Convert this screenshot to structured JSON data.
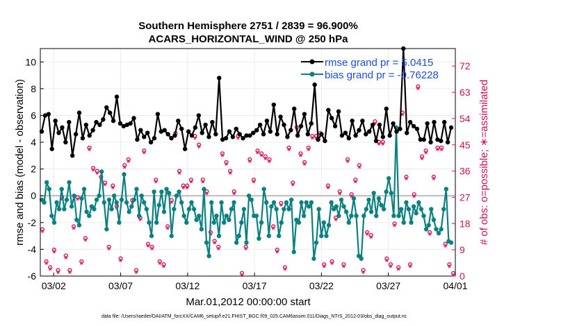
{
  "chart_data": {
    "type": "line",
    "title_line1": "Southern Hemisphere 2751 / 2839 = 96.900%",
    "title_line2": "ACARS_HORIZONTAL_WIND @ 250 hPa",
    "xlabel": "Mar.01,2012 00:00:00 start",
    "ylabel": "rmse and bias (model - observation)",
    "y2label": "# of obs: o=possible; ∗=assimilated",
    "footnote": "data file: /Users/raeder/DAI/ATM_forcXX/CAM6_setup/f.e21.FHIST_BGC.f09_025.CAM6assim.011/Diags_NTrS_2012-03/obs_diag_output.nc",
    "xlim": [
      0,
      31
    ],
    "ylim": [
      -6,
      11
    ],
    "y2lim": [
      0,
      78
    ],
    "xticks": [
      1,
      6,
      11,
      16,
      21,
      26,
      31
    ],
    "xtick_labels": [
      "03/02",
      "03/07",
      "03/12",
      "03/17",
      "03/22",
      "03/27",
      "04/01"
    ],
    "yticks": [
      -6,
      -4,
      -2,
      0,
      2,
      4,
      6,
      8,
      10
    ],
    "y2ticks": [
      0,
      9,
      18,
      27,
      36,
      45,
      54,
      63,
      72
    ],
    "legend_location": "top-right",
    "colors": {
      "rmse": "#000000",
      "bias": "#0a8080",
      "obs": "#d4145a",
      "zero": "#bbbbbb"
    },
    "series": [
      {
        "name": "rmse grand pr = 5.0415",
        "values": [
          4.8,
          6.0,
          6.1,
          3.5,
          5.6,
          4.7,
          5.1,
          4.0,
          5.5,
          3.0,
          4.6,
          6.2,
          4.3,
          5.3,
          4.5,
          4.9,
          5.5,
          5.3,
          5.7,
          6.6,
          6.2,
          5.6,
          7.4,
          5.4,
          5.2,
          5.3,
          5.4,
          5.8,
          4.2,
          4.9,
          4.4,
          4.7,
          4.0,
          4.3,
          6.1,
          4.8,
          4.9,
          4.6,
          4.3,
          4.5,
          5.6,
          5.0,
          3.5,
          4.8,
          4.5,
          5.1,
          6.0,
          4.7,
          5.3,
          4.4,
          5.5,
          4.6,
          8.8,
          4.2,
          4.3,
          4.8,
          4.4,
          5.0,
          4.6,
          4.3,
          4.5,
          4.5,
          4.7,
          4.9,
          5.3,
          4.6,
          5.6,
          4.8,
          6.8,
          4.6,
          5.9,
          5.3,
          4.4,
          4.9,
          6.5,
          4.5,
          5.2,
          6.1,
          4.6,
          5.4,
          8.3,
          4.2,
          4.6,
          4.1,
          6.4,
          5.8,
          5.2,
          6.3,
          4.5,
          4.7,
          4.3,
          5.6,
          4.5,
          4.9,
          5.6,
          4.6,
          4.8,
          5.3,
          4.1,
          5.3,
          4.4,
          6.5,
          4.5,
          5.4,
          4.8,
          5.0,
          11.0,
          4.7,
          5.5,
          5.2,
          5.0,
          4.2,
          4.2,
          5.4,
          4.0,
          5.5,
          4.2,
          4.1,
          5.5,
          4.0,
          5.1
        ]
      },
      {
        "name": "bias grand pr = -0.76228",
        "values": [
          -0.3,
          -0.5,
          1.0,
          0.5,
          -1.5,
          -2.0,
          -0.5,
          -1.0,
          0.5,
          -1.0,
          -0.3,
          1.0,
          -0.8,
          0.0,
          -1.8,
          -2.2,
          -0.2,
          0.5,
          -1.2,
          -1.5,
          -0.8,
          -1.0,
          -0.3,
          0.0,
          1.8,
          -0.5,
          -2.5,
          -0.3,
          -1.0,
          0.0,
          -0.5,
          -2.0,
          -0.3,
          1.6,
          -0.5,
          -1.2,
          -0.8,
          -0.3,
          0.5,
          -1.5,
          0.0,
          -0.5,
          -1.0,
          -2.0,
          -3.0,
          0.3,
          -2.0,
          -0.7,
          0.3,
          -1.2,
          0.5,
          0.2,
          -3.0,
          -1.0,
          0.0,
          0.3,
          -0.5,
          -1.5,
          -2.0,
          -1.0,
          -0.5,
          -1.0,
          -1.8,
          -1.5,
          -2.5,
          0.5,
          -3.5,
          -4.5,
          -0.5,
          -2.0,
          -1.5,
          -3.0,
          -0.5,
          -2.0,
          -1.5,
          -1.8,
          -1.0,
          -0.5,
          -3.5,
          -3.0,
          -2.0,
          -1.0,
          -3.5,
          0.0,
          -0.3,
          -1.5,
          -1.5,
          -3.2,
          -2.0,
          0.5,
          -0.5,
          -3.0,
          -0.8,
          -0.5,
          -1.0,
          -3.0,
          -2.0,
          -1.0,
          -0.5,
          -1.0,
          -0.3,
          -4.2,
          -1.8,
          -2.0,
          -0.5,
          -1.5,
          -0.5,
          -0.8,
          -0.5,
          -4.7,
          -3.5,
          -1.0,
          -3.0,
          -2.0,
          -3.0,
          -2.2,
          -0.5,
          -1.0,
          -0.8,
          -1.5,
          -0.3,
          -0.8,
          -1.2,
          -2.0,
          -1.5,
          -0.2,
          -1.5,
          -4.5,
          -4.7,
          -1.5,
          -1.0,
          -0.3,
          -1.2,
          0.2,
          -1.5,
          -0.2,
          -0.7,
          -1.0,
          0.3,
          1.3,
          0.2,
          -1.5,
          5.1,
          -1.5,
          -1.0,
          -2.0,
          -0.5,
          -1.0,
          -2.0,
          -0.8,
          -1.3,
          -0.5,
          -1.0,
          -1.5,
          -2.5,
          -2.2,
          -1.0,
          -1.8,
          -2.5,
          -2.8,
          -2.5,
          -1.0,
          0.5,
          -3.4,
          -3.5
        ]
      },
      {
        "name": "obs possible",
        "values": [
          16,
          5,
          3,
          9,
          2,
          27,
          7,
          2,
          17,
          27,
          5,
          13,
          44,
          37,
          36,
          34,
          32,
          10,
          31,
          24,
          6,
          38,
          40,
          26,
          2,
          20,
          43,
          11,
          10,
          33,
          5,
          4,
          17,
          26,
          49,
          36,
          31,
          31,
          33,
          48,
          45,
          33,
          29,
          15,
          12,
          10,
          42,
          39,
          36,
          29,
          48,
          1,
          10,
          40,
          33,
          43,
          42,
          41,
          40,
          17,
          9,
          25,
          3,
          44,
          32,
          51,
          42,
          39,
          44,
          48,
          48,
          49,
          4,
          31,
          5,
          20,
          29,
          4,
          40,
          28,
          33,
          38,
          2,
          15,
          14,
          53,
          46,
          46,
          6,
          4,
          18,
          3,
          56,
          34,
          4,
          28,
          65,
          41,
          43,
          15,
          34,
          44,
          44,
          11,
          4,
          1
        ]
      },
      {
        "name": "obs assimilated",
        "values": [
          15,
          4,
          2,
          8,
          1,
          26,
          6,
          1,
          16,
          26,
          4,
          12,
          43,
          36,
          35,
          33,
          31,
          9,
          30,
          23,
          5,
          37,
          39,
          25,
          1,
          19,
          42,
          10,
          9,
          32,
          4,
          3,
          16,
          25,
          48,
          35,
          30,
          30,
          32,
          47,
          44,
          32,
          28,
          14,
          11,
          9,
          41,
          38,
          35,
          28,
          47,
          0,
          9,
          39,
          32,
          42,
          41,
          40,
          39,
          16,
          8,
          24,
          2,
          43,
          31,
          50,
          41,
          38,
          43,
          47,
          47,
          48,
          3,
          30,
          4,
          19,
          28,
          3,
          39,
          27,
          32,
          37,
          1,
          14,
          13,
          52,
          45,
          45,
          5,
          3,
          17,
          2,
          55,
          33,
          3,
          27,
          64,
          40,
          42,
          14,
          33,
          43,
          43,
          10,
          3,
          0
        ]
      }
    ]
  }
}
